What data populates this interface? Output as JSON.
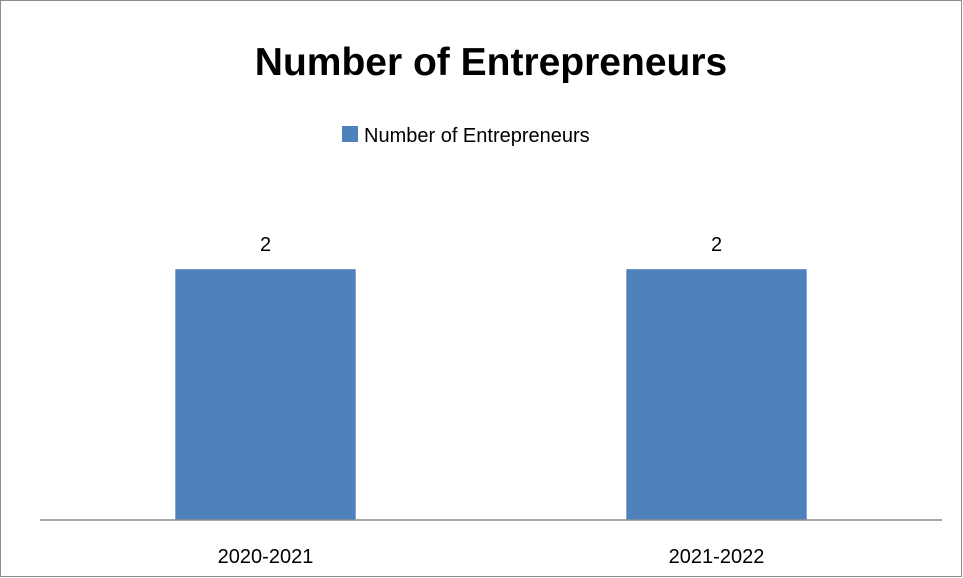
{
  "chart_data": {
    "type": "bar",
    "title": "Number of Entrepreneurs",
    "categories": [
      "2020-2021",
      "2021-2022"
    ],
    "series": [
      {
        "name": "Number of Entrepreneurs",
        "values": [
          2,
          2
        ],
        "color": "#4F81BD"
      }
    ],
    "data_labels": [
      "2",
      "2"
    ],
    "ylim": [
      0,
      2.4
    ],
    "grid": false,
    "legend_placement": "top"
  }
}
